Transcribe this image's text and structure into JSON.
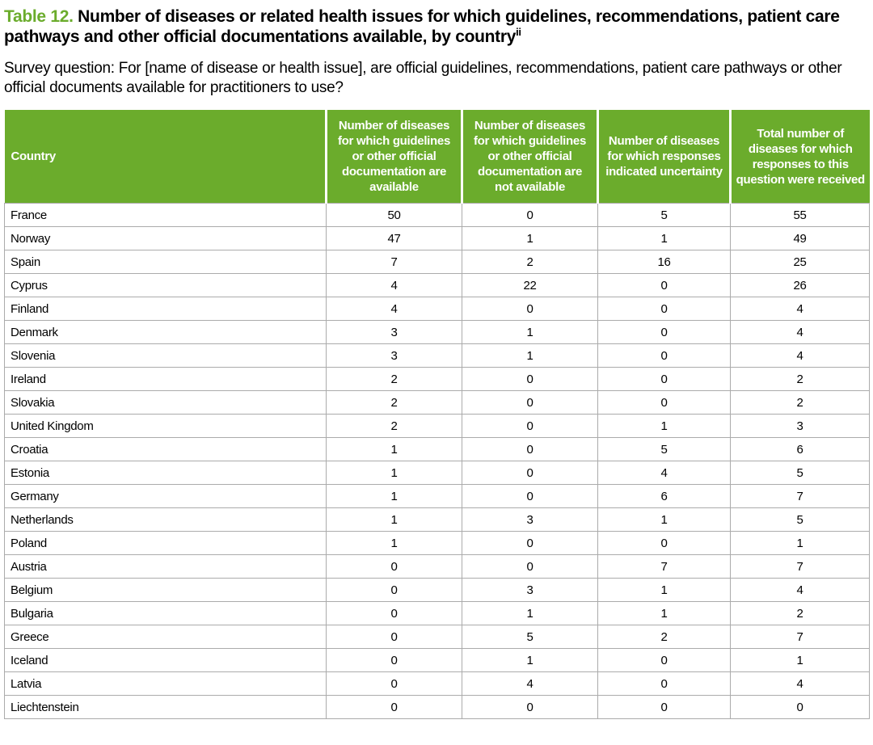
{
  "title": {
    "label": "Table 12.",
    "text": "Number of diseases or related health issues for which guidelines, recommendations, patient care pathways and other official documentations available, by country",
    "superscript": "ii"
  },
  "survey_question": "Survey question: For [name of disease or health issue], are official guidelines, recommendations, patient care pathways or other official documents available for practitioners to use?",
  "table": {
    "columns": [
      "Country",
      "Number of diseases for which guidelines or other official documentation are available",
      "Number of diseases for which guidelines or other official documentation are not available",
      "Number of diseases for which responses indicated uncertainty",
      "Total number of diseases for which responses to this question were received"
    ],
    "rows": [
      {
        "country": "France",
        "values": [
          50,
          0,
          5,
          55
        ]
      },
      {
        "country": "Norway",
        "values": [
          47,
          1,
          1,
          49
        ]
      },
      {
        "country": "Spain",
        "values": [
          7,
          2,
          16,
          25
        ]
      },
      {
        "country": "Cyprus",
        "values": [
          4,
          22,
          0,
          26
        ]
      },
      {
        "country": "Finland",
        "values": [
          4,
          0,
          0,
          4
        ]
      },
      {
        "country": "Denmark",
        "values": [
          3,
          1,
          0,
          4
        ]
      },
      {
        "country": "Slovenia",
        "values": [
          3,
          1,
          0,
          4
        ]
      },
      {
        "country": "Ireland",
        "values": [
          2,
          0,
          0,
          2
        ]
      },
      {
        "country": "Slovakia",
        "values": [
          2,
          0,
          0,
          2
        ]
      },
      {
        "country": "United Kingdom",
        "values": [
          2,
          0,
          1,
          3
        ]
      },
      {
        "country": "Croatia",
        "values": [
          1,
          0,
          5,
          6
        ]
      },
      {
        "country": "Estonia",
        "values": [
          1,
          0,
          4,
          5
        ]
      },
      {
        "country": "Germany",
        "values": [
          1,
          0,
          6,
          7
        ]
      },
      {
        "country": "Netherlands",
        "values": [
          1,
          3,
          1,
          5
        ]
      },
      {
        "country": "Poland",
        "values": [
          1,
          0,
          0,
          1
        ]
      },
      {
        "country": "Austria",
        "values": [
          0,
          0,
          7,
          7
        ]
      },
      {
        "country": "Belgium",
        "values": [
          0,
          3,
          1,
          4
        ]
      },
      {
        "country": "Bulgaria",
        "values": [
          0,
          1,
          1,
          2
        ]
      },
      {
        "country": "Greece",
        "values": [
          0,
          5,
          2,
          7
        ]
      },
      {
        "country": "Iceland",
        "values": [
          0,
          1,
          0,
          1
        ]
      },
      {
        "country": "Latvia",
        "values": [
          0,
          4,
          0,
          4
        ]
      },
      {
        "country": "Liechtenstein",
        "values": [
          0,
          0,
          0,
          0
        ]
      }
    ]
  },
  "colors": {
    "accent_green": "#6BAC2C",
    "header_text": "#FFFFFF",
    "border_gray": "#ABABAB",
    "body_text": "#000000"
  }
}
